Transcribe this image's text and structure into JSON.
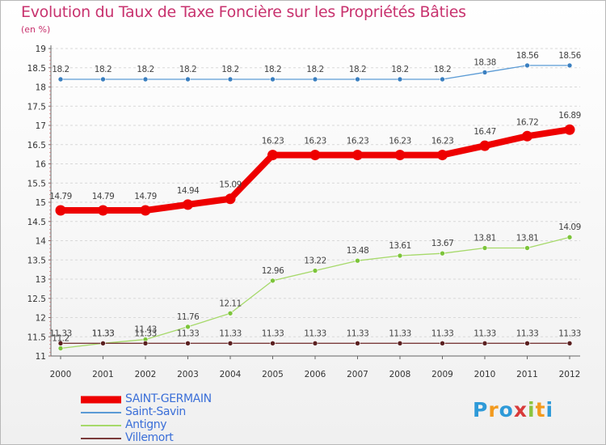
{
  "chart_data": {
    "type": "line",
    "title": "Evolution du Taux de Taxe Foncière sur les Propriétés Bâties",
    "subtitle": "(en %)",
    "x": [
      "2000",
      "2001",
      "2002",
      "2003",
      "2004",
      "2005",
      "2006",
      "2007",
      "2008",
      "2009",
      "2010",
      "2011",
      "2012"
    ],
    "ylim": [
      11,
      19
    ],
    "yticks": [
      "11",
      "11.5",
      "12",
      "12.5",
      "13",
      "13.5",
      "14",
      "14.5",
      "15",
      "15.5",
      "16",
      "16.5",
      "17",
      "17.5",
      "18",
      "18.5",
      "19"
    ],
    "series": [
      {
        "name": "Saint-Savin",
        "color": "#5b9bd5",
        "values": [
          18.2,
          18.2,
          18.2,
          18.2,
          18.2,
          18.2,
          18.2,
          18.2,
          18.2,
          18.2,
          18.38,
          18.56,
          18.56
        ],
        "labels": [
          "18.2",
          "18.2",
          "18.2",
          "18.2",
          "18.2",
          "18.2",
          "18.2",
          "18.2",
          "18.2",
          "18.2",
          "18.38",
          "18.56",
          "18.56"
        ]
      },
      {
        "name": "SAINT-GERMAIN",
        "color": "#ee0000",
        "values": [
          14.79,
          14.79,
          14.79,
          14.94,
          15.09,
          16.23,
          16.23,
          16.23,
          16.23,
          16.23,
          16.47,
          16.72,
          16.89
        ],
        "labels": [
          "14.79",
          "14.79",
          "14.79",
          "14.94",
          "15.09",
          "16.23",
          "16.23",
          "16.23",
          "16.23",
          "16.23",
          "16.47",
          "16.72",
          "16.89"
        ]
      },
      {
        "name": "Antigny",
        "color": "#a6d96a",
        "values": [
          11.2,
          11.33,
          11.43,
          11.76,
          12.11,
          12.96,
          13.22,
          13.48,
          13.61,
          13.67,
          13.81,
          13.81,
          14.09
        ],
        "labels": [
          "11.2",
          "11.33",
          "11.43",
          "11.76",
          "12.11",
          "12.96",
          "13.22",
          "13.48",
          "13.61",
          "13.67",
          "13.81",
          "13.81",
          "14.09"
        ]
      },
      {
        "name": "Villemort",
        "color": "#7a3b3b",
        "values": [
          11.33,
          11.33,
          11.33,
          11.33,
          11.33,
          11.33,
          11.33,
          11.33,
          11.33,
          11.33,
          11.33,
          11.33,
          11.33
        ],
        "labels": [
          "11.33",
          "11.33",
          "11.33",
          "11.33",
          "11.33",
          "11.33",
          "11.33",
          "11.33",
          "11.33",
          "11.33",
          "11.33",
          "11.33",
          "11.33"
        ]
      }
    ],
    "legend": [
      "SAINT-GERMAIN",
      "Saint-Savin",
      "Antigny",
      "Villemort"
    ]
  },
  "logo": {
    "letters": [
      "P",
      "r",
      "o",
      "x",
      "i",
      "t",
      "i"
    ]
  }
}
